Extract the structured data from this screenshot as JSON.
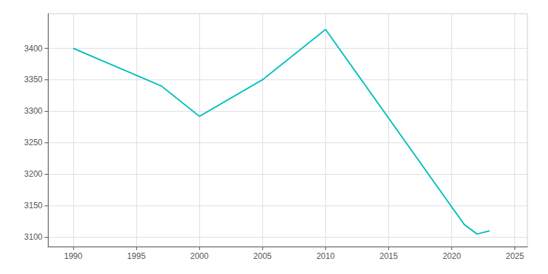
{
  "chart_data": {
    "type": "line",
    "x": [
      1990,
      1997,
      2000,
      2005,
      2010,
      2020,
      2021,
      2022,
      2023
    ],
    "values": [
      3400,
      3340,
      3292,
      3350,
      3430,
      3148,
      3120,
      3105,
      3110
    ],
    "color": "#00BFBF",
    "xlim": [
      1988,
      2026
    ],
    "ylim": [
      3085,
      3455
    ],
    "xticks": [
      1990,
      1995,
      2000,
      2005,
      2010,
      2015,
      2020,
      2025
    ],
    "yticks": [
      3100,
      3150,
      3200,
      3250,
      3300,
      3350,
      3400
    ],
    "grid": true
  }
}
